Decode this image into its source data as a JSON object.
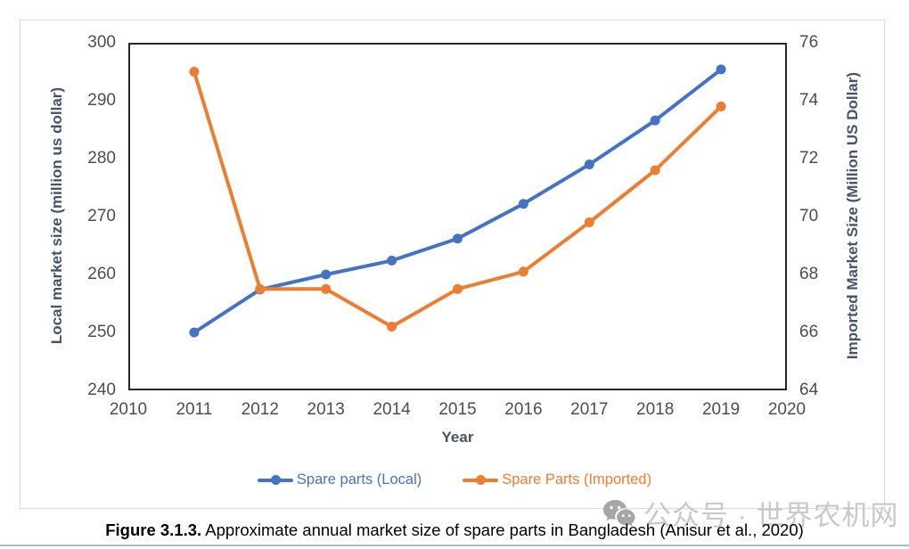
{
  "chart_data": {
    "type": "line",
    "x": [
      2011,
      2012,
      2013,
      2014,
      2015,
      2016,
      2017,
      2018,
      2019
    ],
    "series": [
      {
        "name": "Spare parts (Local)",
        "axis": "left",
        "color": "#4472C4",
        "values": [
          250,
          257.4,
          260,
          262.4,
          266.2,
          272.2,
          279,
          286.6,
          295.4
        ]
      },
      {
        "name": "Spare Parts (Imported)",
        "axis": "right",
        "color": "#ED7D31",
        "values": [
          75,
          67.5,
          67.5,
          66.2,
          67.5,
          68.1,
          69.8,
          71.6,
          73.8
        ]
      }
    ],
    "y_left": {
      "title": "Local market size (million us dollar)",
      "ticks": [
        300,
        290,
        280,
        270,
        260,
        250,
        240
      ],
      "range": [
        240,
        300
      ]
    },
    "y_right": {
      "title": "Imported Market Size (Million US Dollar)",
      "ticks": [
        76,
        74,
        72,
        70,
        68,
        66,
        64
      ],
      "range": [
        64,
        76
      ]
    },
    "x_axis": {
      "title": "Year",
      "ticks": [
        2010,
        2011,
        2012,
        2013,
        2014,
        2015,
        2016,
        2017,
        2018,
        2019,
        2020
      ],
      "range": [
        2010,
        2020
      ]
    },
    "grid": false,
    "legend_position": "bottom"
  },
  "caption": {
    "label": "Figure 3.1.3.",
    "text": " Approximate annual market size of spare parts in Bangladesh (Anisur et al., 2020)"
  },
  "watermark": {
    "icon": "wechat-icon",
    "text": "公众号 · 世界农机网"
  }
}
